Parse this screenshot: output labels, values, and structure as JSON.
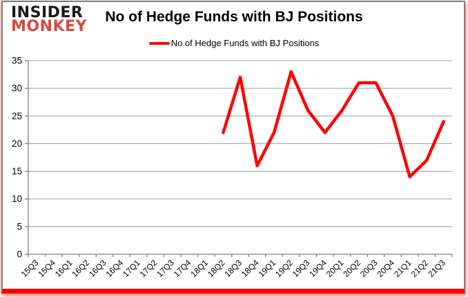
{
  "logo": {
    "line1": "INSIDER",
    "line2": "MONKEY"
  },
  "header": {
    "title": "No of Hedge Funds with BJ Positions"
  },
  "legend": {
    "label": "No of Hedge Funds with BJ Positions",
    "swatch_color": "#ff0000"
  },
  "colors": {
    "line": "#ff0000",
    "logo_black": "#1a1a1a",
    "logo_red": "#d9493b",
    "gridline": "#9b9b9b",
    "axis": "#7f7f7f",
    "bottom_bar": "#fb0000",
    "label_text": "#000000"
  },
  "chart_data": {
    "type": "line",
    "title": "No of Hedge Funds with BJ Positions",
    "xlabel": "",
    "ylabel": "",
    "categories": [
      "15Q3",
      "15Q4",
      "16Q1",
      "16Q2",
      "16Q3",
      "16Q4",
      "17Q1",
      "17Q2",
      "17Q3",
      "17Q4",
      "18Q1",
      "18Q2",
      "18Q3",
      "18Q4",
      "19Q1",
      "19Q2",
      "19Q3",
      "19Q4",
      "20Q1",
      "20Q2",
      "20Q3",
      "20Q4",
      "21Q1",
      "21Q2",
      "21Q3"
    ],
    "series": [
      {
        "name": "No of Hedge Funds with BJ Positions",
        "color": "#ff0000",
        "values": [
          null,
          null,
          null,
          null,
          null,
          null,
          null,
          null,
          null,
          null,
          null,
          22,
          32,
          16,
          22,
          33,
          26,
          22,
          26,
          31,
          31,
          25,
          14,
          17,
          24
        ]
      }
    ],
    "ylim": [
      0,
      35
    ],
    "yticks": [
      0,
      5,
      10,
      15,
      20,
      25,
      30,
      35
    ],
    "grid": "horizontal",
    "legend_position": "top",
    "x_label_rotation": -45
  }
}
